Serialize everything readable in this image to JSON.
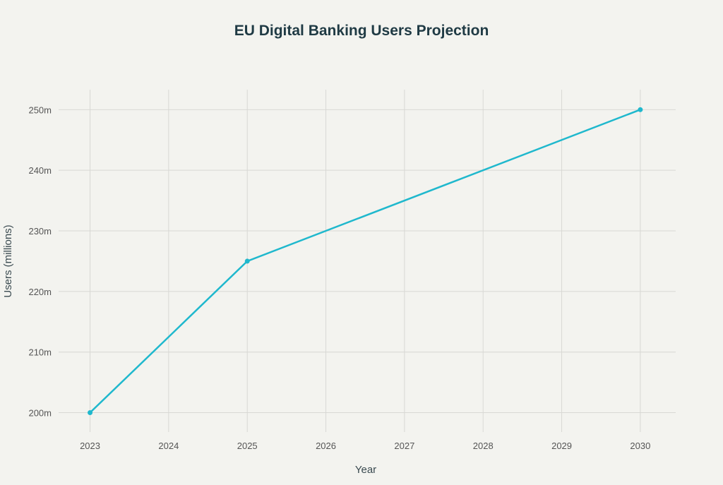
{
  "chart_data": {
    "type": "line",
    "title": "EU Digital Banking Users Projection",
    "xlabel": "Year",
    "ylabel": "Users (millions)",
    "x": [
      2023,
      2025,
      2030
    ],
    "series": [
      {
        "values": [
          200,
          225,
          250
        ],
        "color": "#1fb8cd"
      }
    ],
    "xticks": [
      "2023",
      "2024",
      "2025",
      "2026",
      "2027",
      "2028",
      "2029",
      "2030"
    ],
    "yticks": [
      "200m",
      "210m",
      "220m",
      "230m",
      "240m",
      "250m"
    ],
    "xlim": [
      2022.6,
      2030.45
    ],
    "ylim": [
      196.8,
      253.3
    ],
    "grid": true
  }
}
